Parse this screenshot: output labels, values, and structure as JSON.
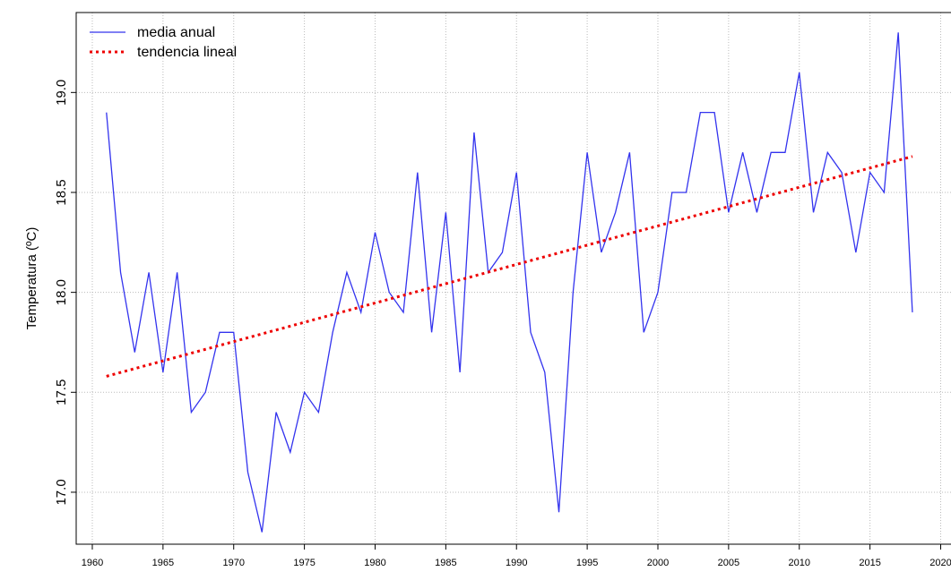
{
  "chart_data": {
    "type": "line",
    "y_label": "Temperatura (ºC)",
    "x": [
      1961,
      1962,
      1963,
      1964,
      1965,
      1966,
      1967,
      1968,
      1969,
      1970,
      1971,
      1972,
      1973,
      1974,
      1975,
      1976,
      1977,
      1978,
      1979,
      1980,
      1981,
      1982,
      1983,
      1984,
      1985,
      1986,
      1987,
      1988,
      1989,
      1990,
      1991,
      1992,
      1993,
      1994,
      1995,
      1996,
      1997,
      1998,
      1999,
      2000,
      2001,
      2002,
      2003,
      2004,
      2005,
      2006,
      2007,
      2008,
      2009,
      2010,
      2011,
      2012,
      2013,
      2014,
      2015,
      2016,
      2017,
      2018
    ],
    "series": [
      {
        "name": "media anual",
        "color": "#3333ee",
        "style": "solid",
        "values": [
          18.9,
          18.1,
          17.7,
          18.1,
          17.6,
          18.1,
          17.4,
          17.5,
          17.8,
          17.8,
          17.1,
          16.8,
          17.4,
          17.2,
          17.5,
          17.4,
          17.8,
          18.1,
          17.9,
          18.3,
          18.0,
          17.9,
          18.6,
          17.8,
          18.4,
          17.6,
          18.8,
          18.1,
          18.2,
          18.6,
          17.8,
          17.6,
          16.9,
          18.0,
          18.7,
          18.2,
          18.4,
          18.7,
          17.8,
          18.0,
          18.5,
          18.5,
          18.9,
          18.9,
          18.4,
          18.7,
          18.4,
          18.7,
          18.7,
          19.1,
          18.4,
          18.7,
          18.6,
          18.2,
          18.6,
          18.5,
          19.3,
          17.9
        ]
      },
      {
        "name": "tendencia lineal",
        "color": "#ee0000",
        "style": "dotted",
        "x": [
          1961,
          2018
        ],
        "values": [
          17.58,
          18.68
        ]
      }
    ],
    "xlim": [
      1958.86,
      2021.3
    ],
    "ylim": [
      16.74,
      19.4
    ],
    "xticks": [
      1960,
      1965,
      1970,
      1975,
      1980,
      1985,
      1990,
      1995,
      2000,
      2005,
      2010,
      2015,
      2020
    ],
    "yticks": [
      {
        "value": 17,
        "label": "17.0"
      },
      17.5,
      {
        "value": 18,
        "label": "18.0"
      },
      18.5,
      {
        "value": 19,
        "label": "19.0"
      }
    ],
    "grid": true,
    "legend": "top-left"
  }
}
